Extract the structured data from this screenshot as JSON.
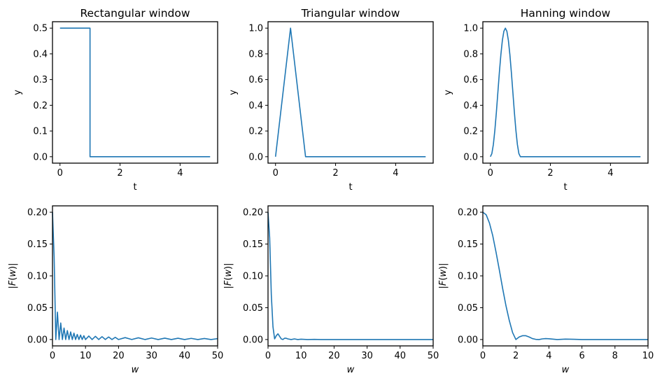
{
  "chart_data": [
    {
      "type": "line",
      "title": "Rectangular window",
      "xlabel": "t",
      "ylabel": "y",
      "xlim": [
        -0.25,
        5.25
      ],
      "ylim": [
        -0.025,
        0.525
      ],
      "xticks": [
        0,
        2,
        4
      ],
      "yticks": [
        0.0,
        0.1,
        0.2,
        0.3,
        0.4,
        0.5
      ],
      "xtick_labels": [
        "0",
        "2",
        "4"
      ],
      "ytick_labels": [
        "0.0",
        "0.1",
        "0.2",
        "0.3",
        "0.4",
        "0.5"
      ],
      "grid": false,
      "series": [
        {
          "x": [
            0,
            1,
            1,
            5
          ],
          "y": [
            0.5,
            0.5,
            0,
            0
          ]
        }
      ]
    },
    {
      "type": "line",
      "title": "Triangular window",
      "xlabel": "t",
      "ylabel": "y",
      "xlim": [
        -0.25,
        5.25
      ],
      "ylim": [
        -0.05,
        1.05
      ],
      "xticks": [
        0,
        2,
        4
      ],
      "yticks": [
        0.0,
        0.2,
        0.4,
        0.6,
        0.8,
        1.0
      ],
      "xtick_labels": [
        "0",
        "2",
        "4"
      ],
      "ytick_labels": [
        "0.0",
        "0.2",
        "0.4",
        "0.6",
        "0.8",
        "1.0"
      ],
      "grid": false,
      "series": [
        {
          "x": [
            0,
            0.5,
            1,
            5
          ],
          "y": [
            0,
            1,
            0,
            0
          ]
        }
      ]
    },
    {
      "type": "line",
      "title": "Hanning window",
      "xlabel": "t",
      "ylabel": "y",
      "xlim": [
        -0.25,
        5.25
      ],
      "ylim": [
        -0.05,
        1.05
      ],
      "xticks": [
        0,
        2,
        4
      ],
      "yticks": [
        0.0,
        0.2,
        0.4,
        0.6,
        0.8,
        1.0
      ],
      "xtick_labels": [
        "0",
        "2",
        "4"
      ],
      "ytick_labels": [
        "0.0",
        "0.2",
        "0.4",
        "0.6",
        "0.8",
        "1.0"
      ],
      "grid": false,
      "series": [
        {
          "x": [
            0,
            0.05,
            0.1,
            0.15,
            0.2,
            0.25,
            0.3,
            0.35,
            0.4,
            0.45,
            0.5,
            0.55,
            0.6,
            0.65,
            0.7,
            0.75,
            0.8,
            0.85,
            0.9,
            0.95,
            1.0,
            5.0
          ],
          "y": [
            0,
            0.024,
            0.095,
            0.206,
            0.345,
            0.5,
            0.655,
            0.794,
            0.905,
            0.976,
            1.0,
            0.976,
            0.905,
            0.794,
            0.655,
            0.5,
            0.345,
            0.206,
            0.095,
            0.024,
            0,
            0
          ]
        }
      ]
    },
    {
      "type": "line",
      "title": "",
      "xlabel": "w",
      "ylabel": "|F(w)|",
      "xlim": [
        0,
        50
      ],
      "ylim": [
        -0.01,
        0.21
      ],
      "xticks": [
        0,
        10,
        20,
        30,
        40,
        50
      ],
      "yticks": [
        0.0,
        0.05,
        0.1,
        0.15,
        0.2
      ],
      "xtick_labels": [
        "0",
        "10",
        "20",
        "30",
        "40",
        "50"
      ],
      "ytick_labels": [
        "0.00",
        "0.05",
        "0.10",
        "0.15",
        "0.20"
      ],
      "grid": false,
      "series": [
        {
          "x": [
            0,
            0.5,
            1.0,
            1.5,
            2.0,
            2.5,
            3.0,
            3.5,
            4.0,
            4.5,
            5.0,
            5.5,
            6.0,
            6.5,
            7.0,
            7.5,
            8.0,
            8.5,
            9.0,
            9.5,
            10.0,
            11.0,
            12.0,
            13.0,
            14.0,
            15.0,
            16.0,
            17.0,
            18.0,
            19.0,
            20.0,
            22.0,
            24.0,
            26.0,
            28.0,
            30.0,
            32.0,
            34.0,
            36.0,
            38.0,
            40.0,
            42.0,
            44.0,
            46.0,
            48.0,
            50.0
          ],
          "y": [
            0.2,
            0.13,
            0.0,
            0.043,
            0.0,
            0.026,
            0.0,
            0.018,
            0.0,
            0.014,
            0.0,
            0.012,
            0.0,
            0.01,
            0.0,
            0.008,
            0.0,
            0.007,
            0.0,
            0.006,
            0.0,
            0.0055,
            0.0,
            0.005,
            0.0,
            0.0045,
            0.0,
            0.004,
            0.0,
            0.0035,
            0.0,
            0.003,
            0.0,
            0.0027,
            0.0,
            0.0024,
            0.0,
            0.0022,
            0.0,
            0.002,
            0.0,
            0.0018,
            0.0,
            0.0016,
            0.0,
            0.0014
          ]
        }
      ]
    },
    {
      "type": "line",
      "title": "",
      "xlabel": "w",
      "ylabel": "|F(w)|",
      "xlim": [
        0,
        50
      ],
      "ylim": [
        -0.01,
        0.21
      ],
      "xticks": [
        0,
        10,
        20,
        30,
        40,
        50
      ],
      "yticks": [
        0.0,
        0.05,
        0.1,
        0.15,
        0.2
      ],
      "xtick_labels": [
        "0",
        "10",
        "20",
        "30",
        "40",
        "50"
      ],
      "ytick_labels": [
        "0.00",
        "0.05",
        "0.10",
        "0.15",
        "0.20"
      ],
      "grid": false,
      "series": [
        {
          "x": [
            0,
            0.5,
            1.0,
            1.5,
            2.0,
            2.5,
            3.0,
            3.5,
            4.0,
            4.5,
            5.0,
            5.5,
            6.0,
            7.0,
            8.0,
            9.0,
            10.0,
            12.0,
            14.0,
            16.0,
            20.0,
            30.0,
            40.0,
            50.0
          ],
          "y": [
            0.2,
            0.16,
            0.07,
            0.02,
            0.001,
            0.006,
            0.009,
            0.005,
            0.001,
            0.0,
            0.002,
            0.002,
            0.001,
            0.0,
            0.001,
            0.0,
            0.0005,
            0.0,
            0.0003,
            0.0,
            0.0,
            0.0,
            0.0,
            0.0
          ]
        }
      ]
    },
    {
      "type": "line",
      "title": "",
      "xlabel": "w",
      "ylabel": "|F(w)|",
      "xlim": [
        0,
        10
      ],
      "ylim": [
        -0.01,
        0.21
      ],
      "xticks": [
        0,
        2,
        4,
        6,
        8,
        10
      ],
      "yticks": [
        0.0,
        0.05,
        0.1,
        0.15,
        0.2
      ],
      "xtick_labels": [
        "0",
        "2",
        "4",
        "6",
        "8",
        "10"
      ],
      "ytick_labels": [
        "0.00",
        "0.05",
        "0.10",
        "0.15",
        "0.20"
      ],
      "grid": false,
      "series": [
        {
          "x": [
            0,
            0.2,
            0.4,
            0.6,
            0.8,
            1.0,
            1.2,
            1.4,
            1.6,
            1.8,
            2.0,
            2.2,
            2.4,
            2.6,
            2.8,
            3.0,
            3.2,
            3.4,
            3.6,
            3.8,
            4.0,
            4.5,
            5.0,
            5.5,
            6.0,
            7.0,
            8.0,
            9.0,
            10.0
          ],
          "y": [
            0.2,
            0.196,
            0.183,
            0.163,
            0.137,
            0.109,
            0.08,
            0.053,
            0.03,
            0.011,
            0.0,
            0.004,
            0.006,
            0.006,
            0.004,
            0.0015,
            0.0003,
            0.0,
            0.001,
            0.0015,
            0.0012,
            0.0,
            0.0006,
            0.0004,
            0.0,
            0.0,
            0.0,
            0.0,
            0.0
          ]
        }
      ]
    }
  ]
}
